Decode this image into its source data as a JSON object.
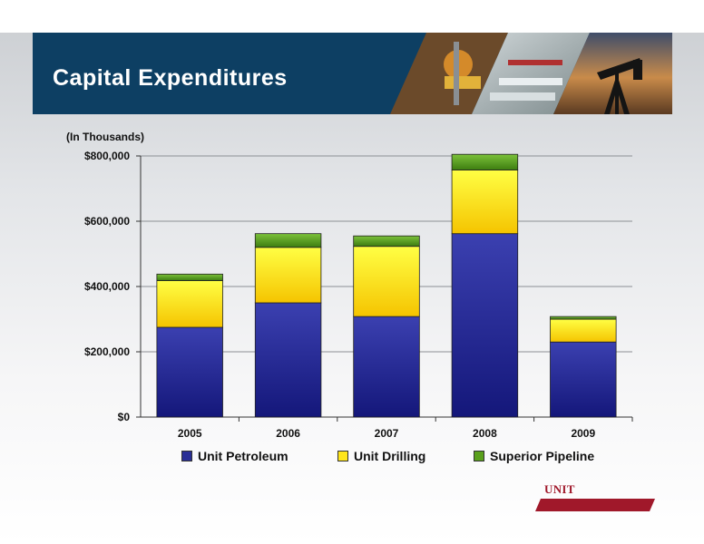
{
  "header": {
    "title": "Capital Expenditures"
  },
  "colors": {
    "header_bg": "#0d3f63",
    "unit_petroleum": "#2a2f96",
    "unit_drilling": "#ffe51a",
    "superior_pipeline": "#5aa01c",
    "brand_red": "#a0182a"
  },
  "logo": {
    "text": "UNIT CORPORATION"
  },
  "chart_data": {
    "type": "bar",
    "stacked": true,
    "title": "",
    "ylabel": "(In Thousands)",
    "xlabel": "",
    "categories": [
      "2005",
      "2006",
      "2007",
      "2008",
      "2009"
    ],
    "series": [
      {
        "name": "Unit Petroleum",
        "values": [
          275000,
          350000,
          308000,
          562000,
          230000
        ]
      },
      {
        "name": "Unit Drilling",
        "values": [
          143000,
          170000,
          215000,
          195000,
          70000
        ]
      },
      {
        "name": "Superior Pipeline",
        "values": [
          20000,
          42000,
          32000,
          48000,
          8000
        ]
      }
    ],
    "ylim": [
      0,
      800000
    ],
    "yticks": [
      0,
      200000,
      400000,
      600000,
      800000
    ],
    "ytick_labels": [
      "$0",
      "$200,000",
      "$400,000",
      "$600,000",
      "$800,000"
    ],
    "grid": true,
    "legend": "bottom"
  }
}
